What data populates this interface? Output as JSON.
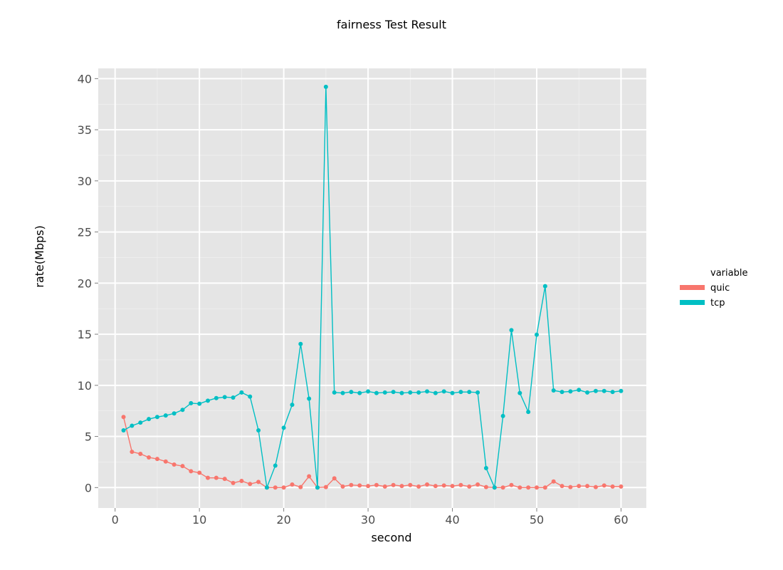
{
  "chart_data": {
    "type": "line",
    "title": "fairness Test Result",
    "xlabel": "second",
    "ylabel": "rate(Mbps)",
    "xlim": [
      -2,
      63
    ],
    "ylim": [
      -2,
      41
    ],
    "xticks": [
      0,
      10,
      20,
      30,
      40,
      50,
      60
    ],
    "yticks": [
      0,
      5,
      10,
      15,
      20,
      25,
      30,
      35,
      40
    ],
    "grid": true,
    "legend": {
      "title": "variable",
      "placement": "right"
    },
    "x": [
      1,
      2,
      3,
      4,
      5,
      6,
      7,
      8,
      9,
      10,
      11,
      12,
      13,
      14,
      15,
      16,
      17,
      18,
      19,
      20,
      21,
      22,
      23,
      24,
      25,
      26,
      27,
      28,
      29,
      30,
      31,
      32,
      33,
      34,
      35,
      36,
      37,
      38,
      39,
      40,
      41,
      42,
      43,
      44,
      45,
      46,
      47,
      48,
      49,
      50,
      51,
      52,
      53,
      54,
      55,
      56,
      57,
      58,
      59,
      60
    ],
    "series": [
      {
        "name": "quic",
        "color": "#F8766D",
        "values": [
          6.9,
          3.5,
          3.3,
          2.95,
          2.8,
          2.55,
          2.25,
          2.1,
          1.6,
          1.45,
          0.95,
          0.95,
          0.85,
          0.45,
          0.65,
          0.35,
          0.55,
          0.0,
          0.0,
          0.0,
          0.3,
          0.05,
          1.1,
          0.0,
          0.05,
          0.9,
          0.1,
          0.25,
          0.2,
          0.15,
          0.25,
          0.1,
          0.25,
          0.15,
          0.25,
          0.1,
          0.3,
          0.15,
          0.2,
          0.15,
          0.25,
          0.1,
          0.3,
          0.05,
          0.0,
          0.0,
          0.25,
          0.0,
          0.0,
          0.0,
          0.0,
          0.6,
          0.15,
          0.05,
          0.15,
          0.15,
          0.05,
          0.2,
          0.1,
          0.1
        ]
      },
      {
        "name": "tcp",
        "color": "#00BFC4",
        "values": [
          5.6,
          6.05,
          6.35,
          6.7,
          6.9,
          7.05,
          7.25,
          7.6,
          8.25,
          8.2,
          8.5,
          8.75,
          8.85,
          8.8,
          9.3,
          8.9,
          5.6,
          0.0,
          2.15,
          5.85,
          8.1,
          14.05,
          8.7,
          0.0,
          39.2,
          9.3,
          9.25,
          9.35,
          9.25,
          9.4,
          9.25,
          9.3,
          9.35,
          9.25,
          9.3,
          9.3,
          9.4,
          9.25,
          9.4,
          9.25,
          9.35,
          9.35,
          9.3,
          1.9,
          0.0,
          7.0,
          15.4,
          9.25,
          7.4,
          14.95,
          19.7,
          9.5,
          9.35,
          9.4,
          9.55,
          9.3,
          9.45,
          9.45,
          9.35,
          9.45
        ]
      }
    ]
  }
}
